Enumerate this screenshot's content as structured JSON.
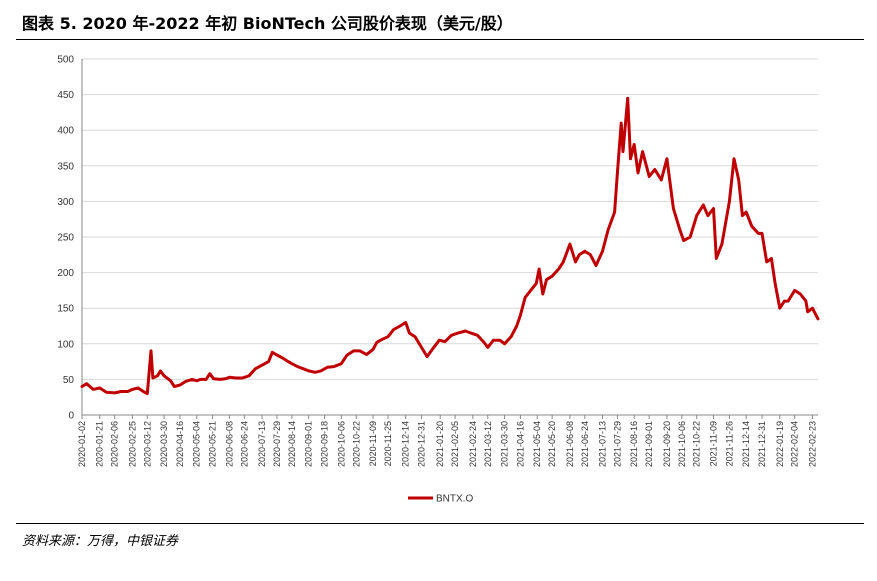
{
  "title": "图表 5. 2020 年-2022 年初 BioNTech 公司股价表现（美元/股）",
  "source": "资料来源：万得，中银证券",
  "chart_data": {
    "type": "line",
    "series": [
      {
        "name": "BNTX.O",
        "color": "#C00000",
        "points": [
          [
            "2020-01-02",
            40
          ],
          [
            "2020-01-07",
            44
          ],
          [
            "2020-01-14",
            36
          ],
          [
            "2020-01-21",
            38
          ],
          [
            "2020-01-28",
            32
          ],
          [
            "2020-02-06",
            31
          ],
          [
            "2020-02-13",
            33
          ],
          [
            "2020-02-20",
            33
          ],
          [
            "2020-02-25",
            36
          ],
          [
            "2020-03-02",
            38
          ],
          [
            "2020-03-09",
            32
          ],
          [
            "2020-03-12",
            30
          ],
          [
            "2020-03-16",
            90
          ],
          [
            "2020-03-18",
            52
          ],
          [
            "2020-03-23",
            55
          ],
          [
            "2020-03-26",
            62
          ],
          [
            "2020-03-30",
            55
          ],
          [
            "2020-04-06",
            48
          ],
          [
            "2020-04-10",
            40
          ],
          [
            "2020-04-16",
            42
          ],
          [
            "2020-04-22",
            47
          ],
          [
            "2020-04-29",
            50
          ],
          [
            "2020-05-04",
            48
          ],
          [
            "2020-05-08",
            50
          ],
          [
            "2020-05-14",
            50
          ],
          [
            "2020-05-18",
            58
          ],
          [
            "2020-05-22",
            51
          ],
          [
            "2020-05-29",
            50
          ],
          [
            "2020-06-04",
            51
          ],
          [
            "2020-06-08",
            53
          ],
          [
            "2020-06-15",
            52
          ],
          [
            "2020-06-22",
            52
          ],
          [
            "2020-06-29",
            55
          ],
          [
            "2020-07-06",
            65
          ],
          [
            "2020-07-13",
            70
          ],
          [
            "2020-07-20",
            75
          ],
          [
            "2020-07-24",
            88
          ],
          [
            "2020-07-28",
            85
          ],
          [
            "2020-08-04",
            80
          ],
          [
            "2020-08-10",
            75
          ],
          [
            "2020-08-14",
            72
          ],
          [
            "2020-08-20",
            68
          ],
          [
            "2020-08-26",
            65
          ],
          [
            "2020-09-01",
            62
          ],
          [
            "2020-09-08",
            60
          ],
          [
            "2020-09-14",
            62
          ],
          [
            "2020-09-21",
            67
          ],
          [
            "2020-09-28",
            68
          ],
          [
            "2020-10-06",
            72
          ],
          [
            "2020-10-12",
            84
          ],
          [
            "2020-10-19",
            90
          ],
          [
            "2020-10-26",
            90
          ],
          [
            "2020-11-02",
            85
          ],
          [
            "2020-11-09",
            92
          ],
          [
            "2020-11-13",
            102
          ],
          [
            "2020-11-17",
            105
          ],
          [
            "2020-11-25",
            110
          ],
          [
            "2020-12-01",
            120
          ],
          [
            "2020-12-08",
            125
          ],
          [
            "2020-12-14",
            130
          ],
          [
            "2020-12-18",
            115
          ],
          [
            "2020-12-24",
            110
          ],
          [
            "2020-12-31",
            95
          ],
          [
            "2021-01-06",
            82
          ],
          [
            "2021-01-12",
            93
          ],
          [
            "2021-01-19",
            105
          ],
          [
            "2021-01-25",
            103
          ],
          [
            "2021-02-01",
            112
          ],
          [
            "2021-02-08",
            115
          ],
          [
            "2021-02-16",
            118
          ],
          [
            "2021-02-22",
            115
          ],
          [
            "2021-03-01",
            112
          ],
          [
            "2021-03-08",
            102
          ],
          [
            "2021-03-12",
            95
          ],
          [
            "2021-03-18",
            105
          ],
          [
            "2021-03-25",
            105
          ],
          [
            "2021-03-30",
            100
          ],
          [
            "2021-04-06",
            110
          ],
          [
            "2021-04-12",
            125
          ],
          [
            "2021-04-16",
            140
          ],
          [
            "2021-04-21",
            165
          ],
          [
            "2021-04-27",
            175
          ],
          [
            "2021-05-03",
            185
          ],
          [
            "2021-05-06",
            205
          ],
          [
            "2021-05-10",
            170
          ],
          [
            "2021-05-14",
            190
          ],
          [
            "2021-05-20",
            195
          ],
          [
            "2021-05-27",
            205
          ],
          [
            "2021-06-01",
            215
          ],
          [
            "2021-06-08",
            240
          ],
          [
            "2021-06-14",
            215
          ],
          [
            "2021-06-18",
            225
          ],
          [
            "2021-06-24",
            230
          ],
          [
            "2021-06-30",
            225
          ],
          [
            "2021-07-06",
            210
          ],
          [
            "2021-07-13",
            230
          ],
          [
            "2021-07-19",
            260
          ],
          [
            "2021-07-26",
            285
          ],
          [
            "2021-07-29",
            340
          ],
          [
            "2021-08-02",
            410
          ],
          [
            "2021-08-04",
            370
          ],
          [
            "2021-08-09",
            445
          ],
          [
            "2021-08-12",
            360
          ],
          [
            "2021-08-16",
            380
          ],
          [
            "2021-08-20",
            340
          ],
          [
            "2021-08-25",
            370
          ],
          [
            "2021-09-01",
            335
          ],
          [
            "2021-09-07",
            345
          ],
          [
            "2021-09-14",
            330
          ],
          [
            "2021-09-20",
            360
          ],
          [
            "2021-09-27",
            290
          ],
          [
            "2021-10-04",
            260
          ],
          [
            "2021-10-08",
            245
          ],
          [
            "2021-10-15",
            250
          ],
          [
            "2021-10-22",
            280
          ],
          [
            "2021-10-29",
            295
          ],
          [
            "2021-11-03",
            280
          ],
          [
            "2021-11-09",
            290
          ],
          [
            "2021-11-12",
            220
          ],
          [
            "2021-11-18",
            240
          ],
          [
            "2021-11-26",
            300
          ],
          [
            "2021-12-01",
            360
          ],
          [
            "2021-12-06",
            330
          ],
          [
            "2021-12-10",
            280
          ],
          [
            "2021-12-14",
            285
          ],
          [
            "2021-12-20",
            265
          ],
          [
            "2021-12-27",
            255
          ],
          [
            "2021-12-31",
            255
          ],
          [
            "2022-01-05",
            215
          ],
          [
            "2022-01-10",
            220
          ],
          [
            "2022-01-14",
            185
          ],
          [
            "2022-01-19",
            150
          ],
          [
            "2022-01-24",
            160
          ],
          [
            "2022-01-28",
            160
          ],
          [
            "2022-02-04",
            175
          ],
          [
            "2022-02-10",
            170
          ],
          [
            "2022-02-16",
            160
          ],
          [
            "2022-02-18",
            145
          ],
          [
            "2022-02-23",
            150
          ],
          [
            "2022-03-01",
            135
          ]
        ]
      }
    ],
    "xlabels": [
      "2020-01-02",
      "2020-01-21",
      "2020-02-06",
      "2020-02-25",
      "2020-03-12",
      "2020-03-30",
      "2020-04-16",
      "2020-05-04",
      "2020-05-21",
      "2020-06-08",
      "2020-06-24",
      "2020-07-13",
      "2020-07-29",
      "2020-08-14",
      "2020-09-01",
      "2020-09-18",
      "2020-10-06",
      "2020-10-22",
      "2020-11-09",
      "2020-11-25",
      "2020-12-14",
      "2020-12-31",
      "2021-01-20",
      "2021-02-05",
      "2021-02-24",
      "2021-03-12",
      "2021-03-30",
      "2021-04-16",
      "2021-05-04",
      "2021-05-20",
      "2021-06-08",
      "2021-06-24",
      "2021-07-13",
      "2021-07-29",
      "2021-08-16",
      "2021-09-01",
      "2021-09-20",
      "2021-10-06",
      "2021-10-22",
      "2021-11-09",
      "2021-11-26",
      "2021-12-14",
      "2021-12-31",
      "2022-01-19",
      "2022-02-04",
      "2022-02-23"
    ],
    "yticks": [
      0,
      50,
      100,
      150,
      200,
      250,
      300,
      350,
      400,
      450,
      500
    ],
    "ylim": [
      0,
      500
    ],
    "xlim": [
      "2020-01-02",
      "2022-03-01"
    ],
    "grid": "horizontal",
    "legend": "bottom-center"
  }
}
